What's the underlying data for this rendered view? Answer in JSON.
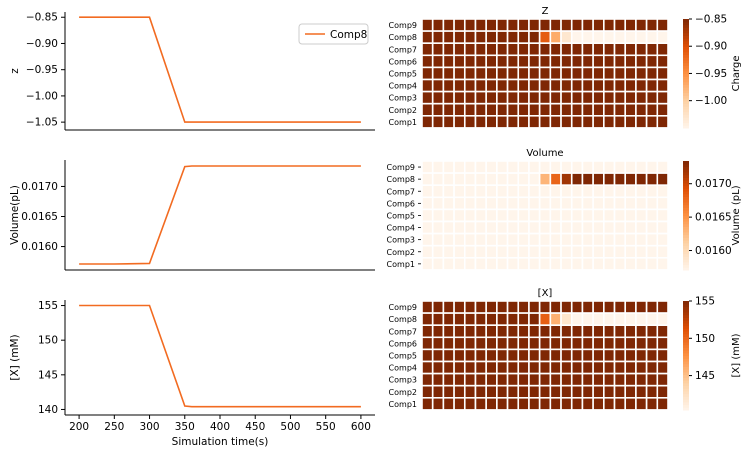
{
  "chart_data": [
    {
      "type": "line",
      "xlabel": "",
      "ylabel": "z",
      "xlim": [
        180,
        620
      ],
      "ylim": [
        -1.065,
        -0.84
      ],
      "yticks": [
        -0.85,
        -0.9,
        -0.95,
        -1.0,
        -1.05
      ],
      "ytick_labels": [
        "−0.85",
        "−0.90",
        "−0.95",
        "−1.00",
        "−1.05"
      ],
      "legend": {
        "position": "top-right",
        "entries": [
          "Comp8"
        ]
      },
      "series": [
        {
          "name": "Comp8",
          "color": "#f26b21",
          "x": [
            200,
            250,
            300,
            350,
            400,
            450,
            500,
            550,
            600
          ],
          "y": [
            -0.85,
            -0.85,
            -0.85,
            -1.05,
            -1.05,
            -1.05,
            -1.05,
            -1.05,
            -1.05
          ]
        }
      ]
    },
    {
      "type": "line",
      "xlabel": "",
      "ylabel": "Volume(pL)",
      "xlim": [
        180,
        620
      ],
      "ylim": [
        0.01561,
        0.01744
      ],
      "yticks": [
        0.016,
        0.0165,
        0.017
      ],
      "ytick_labels": [
        "0.0160",
        "0.0165",
        "0.0170"
      ],
      "series": [
        {
          "name": "",
          "color": "#f26b21",
          "x": [
            200,
            250,
            300,
            350,
            360,
            400,
            450,
            500,
            550,
            600
          ],
          "y": [
            0.01571,
            0.01571,
            0.01572,
            0.01733,
            0.01734,
            0.01734,
            0.01734,
            0.01734,
            0.01734,
            0.01734
          ]
        }
      ]
    },
    {
      "type": "line",
      "xlabel": "Simulation time(s)",
      "ylabel": "[X] (mM)",
      "xlim": [
        180,
        620
      ],
      "ylim": [
        139.2,
        155.8
      ],
      "xticks": [
        200,
        250,
        300,
        350,
        400,
        450,
        500,
        550,
        600
      ],
      "xtick_labels": [
        "200",
        "250",
        "300",
        "350",
        "400",
        "450",
        "500",
        "550",
        "600"
      ],
      "yticks": [
        140,
        145,
        150,
        155
      ],
      "ytick_labels": [
        "140",
        "145",
        "150",
        "155"
      ],
      "series": [
        {
          "name": "",
          "color": "#f26b21",
          "x": [
            200,
            250,
            300,
            350,
            360,
            400,
            450,
            500,
            550,
            600
          ],
          "y": [
            155,
            155,
            155,
            140.5,
            140.4,
            140.4,
            140.4,
            140.4,
            140.4,
            140.4
          ]
        }
      ]
    },
    {
      "type": "heatmap",
      "title": "Z",
      "rows": [
        "Comp9",
        "Comp8",
        "Comp7",
        "Comp6",
        "Comp5",
        "Comp4",
        "Comp3",
        "Comp2",
        "Comp1"
      ],
      "n_cols": 23,
      "colorbar": {
        "label": "Charge",
        "min": -1.05,
        "max": -0.85,
        "ticks": [
          -0.85,
          -0.9,
          -0.95,
          -1.0
        ],
        "tick_labels": [
          "−0.85",
          "−0.90",
          "−0.95",
          "−1.00"
        ]
      },
      "values": [
        [
          -0.85,
          -0.85,
          -0.85,
          -0.85,
          -0.85,
          -0.85,
          -0.85,
          -0.85,
          -0.85,
          -0.85,
          -0.85,
          -0.85,
          -0.85,
          -0.85,
          -0.85,
          -0.85,
          -0.85,
          -0.85,
          -0.85,
          -0.85,
          -0.85,
          -0.85,
          -0.85
        ],
        [
          -0.85,
          -0.85,
          -0.85,
          -0.85,
          -0.85,
          -0.85,
          -0.85,
          -0.85,
          -0.85,
          -0.85,
          -0.85,
          -0.91,
          -0.97,
          -1.03,
          -1.05,
          -1.05,
          -1.05,
          -1.05,
          -1.05,
          -1.05,
          -1.05,
          -1.05,
          -1.05
        ],
        [
          -0.85,
          -0.85,
          -0.85,
          -0.85,
          -0.85,
          -0.85,
          -0.85,
          -0.85,
          -0.85,
          -0.85,
          -0.85,
          -0.85,
          -0.85,
          -0.85,
          -0.85,
          -0.85,
          -0.85,
          -0.85,
          -0.85,
          -0.85,
          -0.85,
          -0.85,
          -0.85
        ],
        [
          -0.85,
          -0.85,
          -0.85,
          -0.85,
          -0.85,
          -0.85,
          -0.85,
          -0.85,
          -0.85,
          -0.85,
          -0.85,
          -0.85,
          -0.85,
          -0.85,
          -0.85,
          -0.85,
          -0.85,
          -0.85,
          -0.85,
          -0.85,
          -0.85,
          -0.85,
          -0.85
        ],
        [
          -0.85,
          -0.85,
          -0.85,
          -0.85,
          -0.85,
          -0.85,
          -0.85,
          -0.85,
          -0.85,
          -0.85,
          -0.85,
          -0.85,
          -0.85,
          -0.85,
          -0.85,
          -0.85,
          -0.85,
          -0.85,
          -0.85,
          -0.85,
          -0.85,
          -0.85,
          -0.85
        ],
        [
          -0.85,
          -0.85,
          -0.85,
          -0.85,
          -0.85,
          -0.85,
          -0.85,
          -0.85,
          -0.85,
          -0.85,
          -0.85,
          -0.85,
          -0.85,
          -0.85,
          -0.85,
          -0.85,
          -0.85,
          -0.85,
          -0.85,
          -0.85,
          -0.85,
          -0.85,
          -0.85
        ],
        [
          -0.85,
          -0.85,
          -0.85,
          -0.85,
          -0.85,
          -0.85,
          -0.85,
          -0.85,
          -0.85,
          -0.85,
          -0.85,
          -0.85,
          -0.85,
          -0.85,
          -0.85,
          -0.85,
          -0.85,
          -0.85,
          -0.85,
          -0.85,
          -0.85,
          -0.85,
          -0.85
        ],
        [
          -0.85,
          -0.85,
          -0.85,
          -0.85,
          -0.85,
          -0.85,
          -0.85,
          -0.85,
          -0.85,
          -0.85,
          -0.85,
          -0.85,
          -0.85,
          -0.85,
          -0.85,
          -0.85,
          -0.85,
          -0.85,
          -0.85,
          -0.85,
          -0.85,
          -0.85,
          -0.85
        ],
        [
          -0.85,
          -0.85,
          -0.85,
          -0.85,
          -0.85,
          -0.85,
          -0.85,
          -0.85,
          -0.85,
          -0.85,
          -0.85,
          -0.85,
          -0.85,
          -0.85,
          -0.85,
          -0.85,
          -0.85,
          -0.85,
          -0.85,
          -0.85,
          -0.85,
          -0.85,
          -0.85
        ]
      ]
    },
    {
      "type": "heatmap",
      "title": "Volume",
      "rows": [
        "Comp9",
        "Comp8",
        "Comp7",
        "Comp6",
        "Comp5",
        "Comp4",
        "Comp3",
        "Comp2",
        "Comp1"
      ],
      "n_cols": 23,
      "colorbar": {
        "label": "Volume (pL)",
        "min": 0.01571,
        "max": 0.01734,
        "ticks": [
          0.016,
          0.0165,
          0.017
        ],
        "tick_labels": [
          "0.0160",
          "0.0165",
          "0.0170"
        ]
      },
      "values": [
        [
          0.01571,
          0.01571,
          0.01571,
          0.01571,
          0.01571,
          0.01571,
          0.01571,
          0.01571,
          0.01571,
          0.01571,
          0.01571,
          0.01571,
          0.01571,
          0.01571,
          0.01571,
          0.01571,
          0.01571,
          0.01571,
          0.01571,
          0.01571,
          0.01571,
          0.01571,
          0.01571
        ],
        [
          0.01571,
          0.01571,
          0.01571,
          0.01571,
          0.01571,
          0.01571,
          0.01571,
          0.01571,
          0.01571,
          0.01571,
          0.01571,
          0.0163,
          0.0168,
          0.0172,
          0.01734,
          0.01734,
          0.01734,
          0.01734,
          0.01734,
          0.01734,
          0.01734,
          0.01734,
          0.01734
        ],
        [
          0.01571,
          0.01571,
          0.01571,
          0.01571,
          0.01571,
          0.01571,
          0.01571,
          0.01571,
          0.01571,
          0.01571,
          0.01571,
          0.01571,
          0.01571,
          0.01571,
          0.01571,
          0.01571,
          0.01571,
          0.01571,
          0.01571,
          0.01571,
          0.01571,
          0.01571,
          0.01571
        ],
        [
          0.01571,
          0.01571,
          0.01571,
          0.01571,
          0.01571,
          0.01571,
          0.01571,
          0.01571,
          0.01571,
          0.01571,
          0.01571,
          0.01571,
          0.01571,
          0.01571,
          0.01571,
          0.01571,
          0.01571,
          0.01571,
          0.01571,
          0.01571,
          0.01571,
          0.01571,
          0.01571
        ],
        [
          0.01571,
          0.01571,
          0.01571,
          0.01571,
          0.01571,
          0.01571,
          0.01571,
          0.01571,
          0.01571,
          0.01571,
          0.01571,
          0.01571,
          0.01571,
          0.01571,
          0.01571,
          0.01571,
          0.01571,
          0.01571,
          0.01571,
          0.01571,
          0.01571,
          0.01571,
          0.01571
        ],
        [
          0.01571,
          0.01571,
          0.01571,
          0.01571,
          0.01571,
          0.01571,
          0.01571,
          0.01571,
          0.01571,
          0.01571,
          0.01571,
          0.01571,
          0.01571,
          0.01571,
          0.01571,
          0.01571,
          0.01571,
          0.01571,
          0.01571,
          0.01571,
          0.01571,
          0.01571,
          0.01571
        ],
        [
          0.01571,
          0.01571,
          0.01571,
          0.01571,
          0.01571,
          0.01571,
          0.01571,
          0.01571,
          0.01571,
          0.01571,
          0.01571,
          0.01571,
          0.01571,
          0.01571,
          0.01571,
          0.01571,
          0.01571,
          0.01571,
          0.01571,
          0.01571,
          0.01571,
          0.01571,
          0.01571
        ],
        [
          0.01571,
          0.01571,
          0.01571,
          0.01571,
          0.01571,
          0.01571,
          0.01571,
          0.01571,
          0.01571,
          0.01571,
          0.01571,
          0.01571,
          0.01571,
          0.01571,
          0.01571,
          0.01571,
          0.01571,
          0.01571,
          0.01571,
          0.01571,
          0.01571,
          0.01571,
          0.01571
        ],
        [
          0.01571,
          0.01571,
          0.01571,
          0.01571,
          0.01571,
          0.01571,
          0.01571,
          0.01571,
          0.01571,
          0.01571,
          0.01571,
          0.01571,
          0.01571,
          0.01571,
          0.01571,
          0.01571,
          0.01571,
          0.01571,
          0.01571,
          0.01571,
          0.01571,
          0.01571,
          0.01571
        ]
      ]
    },
    {
      "type": "heatmap",
      "title": "[X]",
      "rows": [
        "Comp9",
        "Comp8",
        "Comp7",
        "Comp6",
        "Comp5",
        "Comp4",
        "Comp3",
        "Comp2",
        "Comp1"
      ],
      "n_cols": 23,
      "colorbar": {
        "label": "[X] (mM)",
        "min": 140.4,
        "max": 155,
        "ticks": [
          145,
          150,
          155
        ],
        "tick_labels": [
          "145",
          "150",
          "155"
        ]
      },
      "values": [
        [
          155,
          155,
          155,
          155,
          155,
          155,
          155,
          155,
          155,
          155,
          155,
          155,
          155,
          155,
          155,
          155,
          155,
          155,
          155,
          155,
          155,
          155,
          155
        ],
        [
          155,
          155,
          155,
          155,
          155,
          155,
          155,
          155,
          155,
          155,
          155,
          150.5,
          146,
          142,
          140.4,
          140.4,
          140.4,
          140.4,
          140.4,
          140.4,
          140.4,
          140.4,
          140.4
        ],
        [
          155,
          155,
          155,
          155,
          155,
          155,
          155,
          155,
          155,
          155,
          155,
          155,
          155,
          155,
          155,
          155,
          155,
          155,
          155,
          155,
          155,
          155,
          155
        ],
        [
          155,
          155,
          155,
          155,
          155,
          155,
          155,
          155,
          155,
          155,
          155,
          155,
          155,
          155,
          155,
          155,
          155,
          155,
          155,
          155,
          155,
          155,
          155
        ],
        [
          155,
          155,
          155,
          155,
          155,
          155,
          155,
          155,
          155,
          155,
          155,
          155,
          155,
          155,
          155,
          155,
          155,
          155,
          155,
          155,
          155,
          155,
          155
        ],
        [
          155,
          155,
          155,
          155,
          155,
          155,
          155,
          155,
          155,
          155,
          155,
          155,
          155,
          155,
          155,
          155,
          155,
          155,
          155,
          155,
          155,
          155,
          155
        ],
        [
          155,
          155,
          155,
          155,
          155,
          155,
          155,
          155,
          155,
          155,
          155,
          155,
          155,
          155,
          155,
          155,
          155,
          155,
          155,
          155,
          155,
          155,
          155
        ],
        [
          155,
          155,
          155,
          155,
          155,
          155,
          155,
          155,
          155,
          155,
          155,
          155,
          155,
          155,
          155,
          155,
          155,
          155,
          155,
          155,
          155,
          155,
          155
        ],
        [
          155,
          155,
          155,
          155,
          155,
          155,
          155,
          155,
          155,
          155,
          155,
          155,
          155,
          155,
          155,
          155,
          155,
          155,
          155,
          155,
          155,
          155,
          155
        ]
      ]
    }
  ],
  "colormap": [
    "#fff5eb",
    "#fdd2a5",
    "#fd9243",
    "#df4f05",
    "#7f2704"
  ]
}
